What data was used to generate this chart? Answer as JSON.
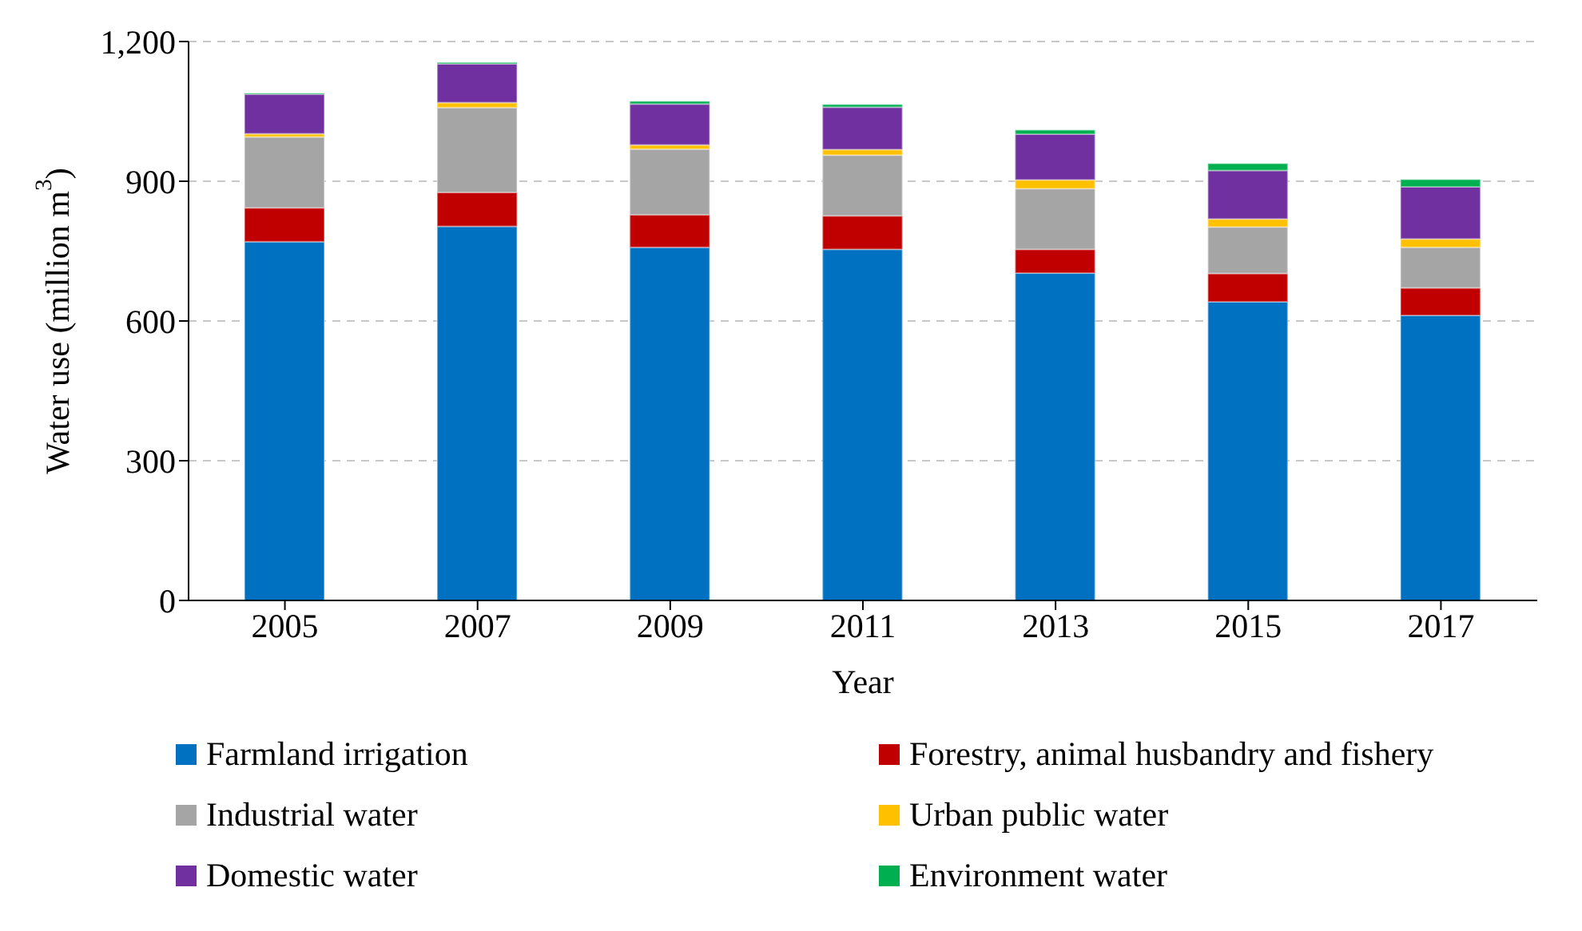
{
  "chart_data": {
    "type": "bar",
    "stacked": true,
    "xlabel": "Year",
    "ylabel": "Water use (million m$^{3}$)",
    "categories": [
      "2005",
      "2007",
      "2009",
      "2011",
      "2013",
      "2015",
      "2017"
    ],
    "ylim": [
      0,
      1200
    ],
    "yticks": [
      0,
      {
        "value": 300,
        "label": "300"
      },
      {
        "value": 600,
        "label": "600"
      },
      {
        "value": 900,
        "label": "900"
      },
      {
        "value": 1200,
        "label": "1,200"
      }
    ],
    "grid": "y",
    "legend": "bottom",
    "series": [
      {
        "name": "Farmland irrigation",
        "color": "#0070c0",
        "values": [
          770,
          803,
          758,
          754,
          703,
          641,
          612
        ]
      },
      {
        "name": "Forestry, animal husbandry and fishery",
        "color": "#c00000",
        "values": [
          73,
          73,
          70,
          72,
          51,
          61,
          59
        ]
      },
      {
        "name": "Industrial water",
        "color": "#a5a5a5",
        "values": [
          152,
          182,
          141,
          130,
          130,
          100,
          87
        ]
      },
      {
        "name": "Urban public water",
        "color": "#ffc000",
        "values": [
          7,
          11,
          9,
          12,
          19,
          17,
          18
        ]
      },
      {
        "name": "Domestic water",
        "color": "#7030a0",
        "values": [
          85,
          83,
          88,
          91,
          98,
          104,
          112
        ]
      },
      {
        "name": "Environment water",
        "color": "#00b050",
        "values": [
          2,
          3,
          6,
          6,
          9,
          15,
          16
        ]
      }
    ]
  }
}
